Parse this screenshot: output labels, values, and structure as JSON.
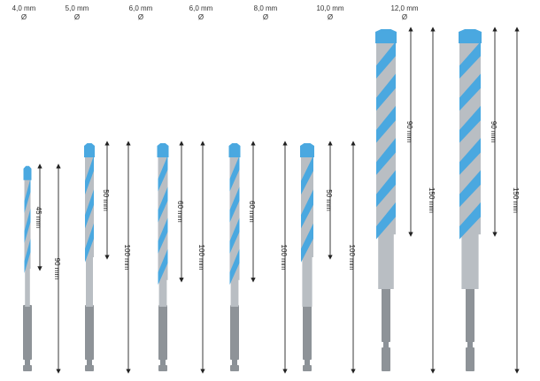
{
  "colors": {
    "flute": "#4aa8e0",
    "flute_dark": "#2f8fcf",
    "steel": "#b9bec3",
    "steel_dark": "#8b9197",
    "hex": "#8e9398",
    "arrow": "#222222"
  },
  "diameter_symbol": "Ø",
  "bits": [
    {
      "diameter": "4,0 mm",
      "flute_mm": 45,
      "flute_label": "45 mm",
      "total_mm": 90,
      "total_label": "90 mm"
    },
    {
      "diameter": "5,0 mm",
      "flute_mm": 50,
      "flute_label": "50 mm",
      "total_mm": 100,
      "total_label": "100 mm"
    },
    {
      "diameter": "6,0 mm",
      "flute_mm": 60,
      "flute_label": "60 mm",
      "total_mm": 100,
      "total_label": "100 mm"
    },
    {
      "diameter": "6,0 mm",
      "flute_mm": 60,
      "flute_label": "60 mm",
      "total_mm": 100,
      "total_label": "100 mm"
    },
    {
      "diameter": "8,0 mm",
      "flute_mm": 50,
      "flute_label": "50 mm",
      "total_mm": 100,
      "total_label": "100 mm"
    },
    {
      "diameter": "10,0 mm",
      "flute_mm": 90,
      "flute_label": "90 mm",
      "total_mm": 150,
      "total_label": "150 mm"
    },
    {
      "diameter": "12,0 mm",
      "flute_mm": 90,
      "flute_label": "90 mm",
      "total_mm": 150,
      "total_label": "150 mm"
    }
  ]
}
